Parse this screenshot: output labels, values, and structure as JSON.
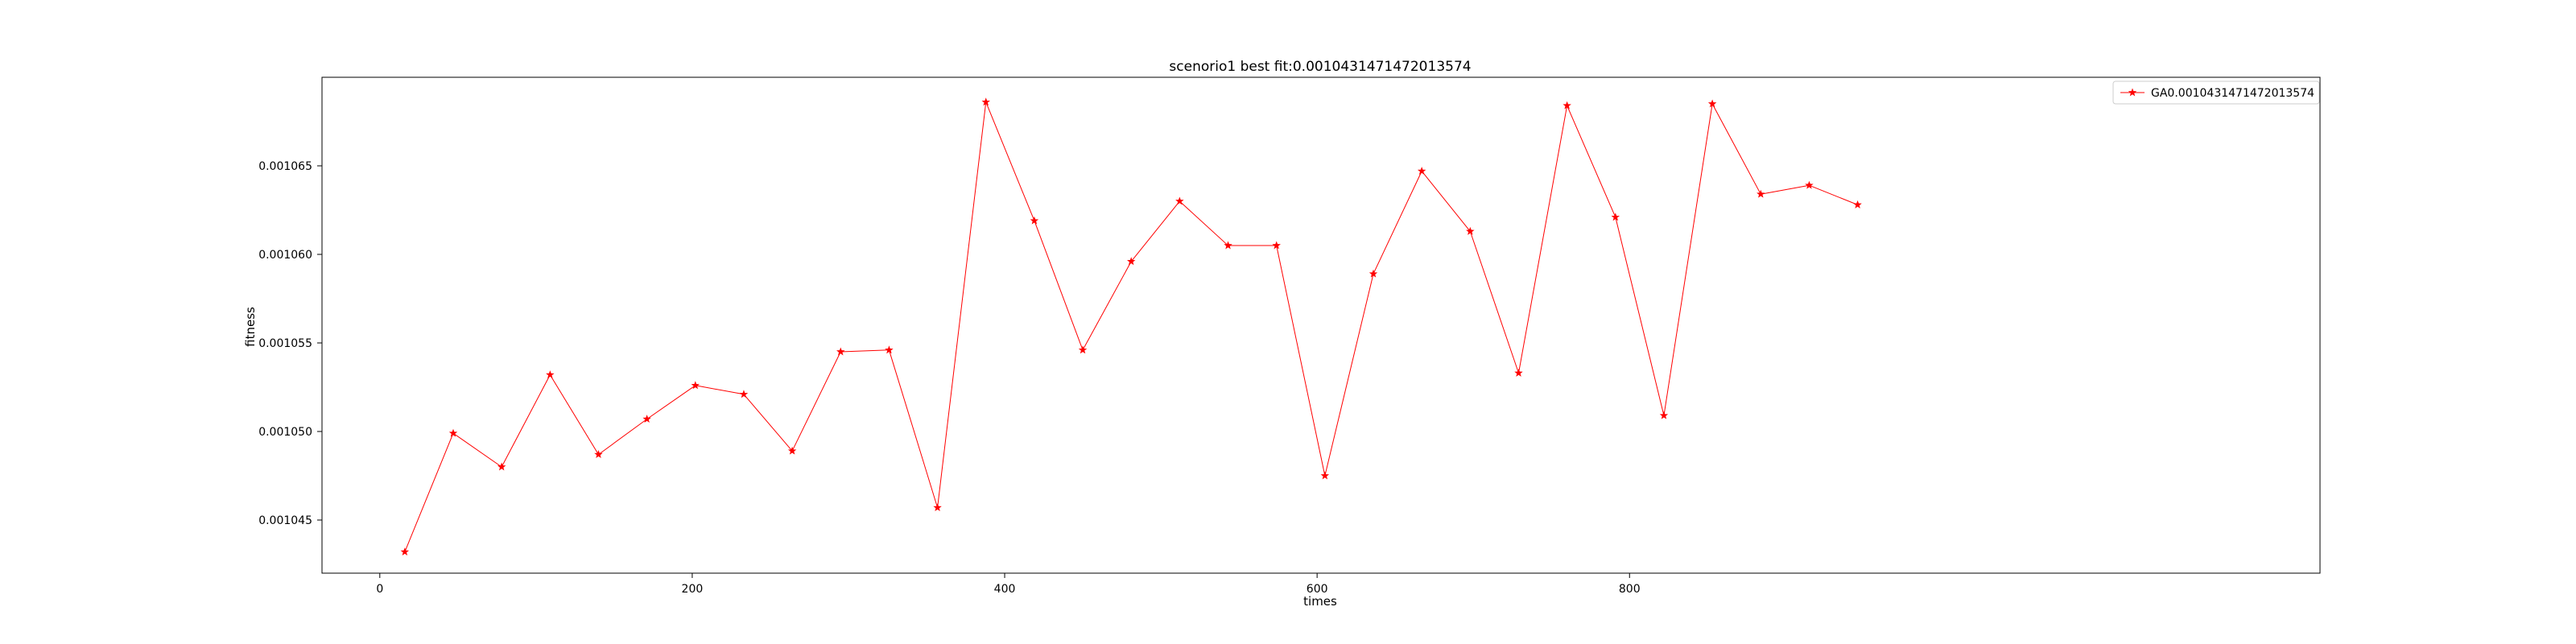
{
  "chart_data": {
    "type": "line",
    "title": "scenorio1 best fit:0.0010431471472013574",
    "xlabel": "times",
    "ylabel": "fitness",
    "xlim": [
      -37,
      1242
    ],
    "ylim": [
      0.001042,
      0.00107
    ],
    "xticks": [
      0,
      200,
      400,
      600,
      800
    ],
    "xtick_labels": [
      "0",
      "200",
      "400",
      "600",
      "800"
    ],
    "yticks": [
      0.001045,
      0.00105,
      0.001055,
      0.00106,
      0.001065
    ],
    "ytick_labels": [
      "0.001045",
      "0.001050",
      "0.001055",
      "0.001060",
      "0.001065"
    ],
    "grid": false,
    "legend_position": "top-right",
    "series": [
      {
        "name": "GA0.0010431471472013574",
        "color": "#ff0000",
        "marker": "star",
        "x": [
          16,
          47,
          78,
          109,
          140,
          171,
          202,
          233,
          264,
          295,
          326,
          357,
          388,
          419,
          450,
          481,
          512,
          543,
          574,
          605,
          636,
          667,
          698,
          729,
          760,
          791,
          822,
          853,
          884,
          915,
          946
        ],
        "y": [
          0.0010432,
          0.0010499,
          0.001048,
          0.0010532,
          0.0010487,
          0.0010507,
          0.0010526,
          0.0010521,
          0.0010489,
          0.0010545,
          0.0010546,
          0.0010457,
          0.0010686,
          0.0010619,
          0.0010546,
          0.0010596,
          0.001063,
          0.0010605,
          0.0010605,
          0.0010475,
          0.0010589,
          0.0010647,
          0.0010613,
          0.0010533,
          0.0010684,
          0.0010621,
          0.0010509,
          0.0010685,
          0.0010634,
          0.0010639,
          0.0010628
        ]
      }
    ]
  }
}
